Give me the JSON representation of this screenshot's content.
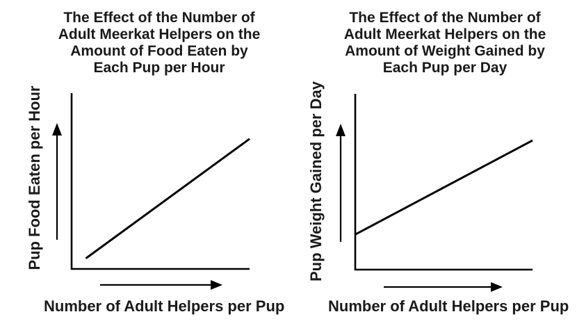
{
  "page": {
    "background": "#ffffff",
    "text_color": "#1a1a1a",
    "line_color": "#000000"
  },
  "charts": [
    {
      "id": "food-eaten",
      "title_lines": [
        "The Effect of the Number of",
        "Adult Meerkat Helpers on the",
        "Amount of Food Eaten by",
        "Each Pup per Hour"
      ],
      "ylabel": "Pup Food Eaten per Hour",
      "xlabel": "Number of Adult Helpers per Pup"
    },
    {
      "id": "weight-gained",
      "title_lines": [
        "The Effect of the Number of",
        "Adult Meerkat Helpers on the",
        "Amount of Weight Gained by",
        "Each Pup per Day"
      ],
      "ylabel": "Pup Weight Gained per Day",
      "xlabel": "Number of Adult Helpers per Pup"
    }
  ],
  "chart_data": [
    {
      "type": "line",
      "title": "The Effect of the Number of Adult Meerkat Helpers on the Amount of Food Eaten by Each Pup per Hour",
      "xlabel": "Number of Adult Helpers per Pup",
      "ylabel": "Pup Food Eaten per Hour",
      "x_axis": {
        "tick_labels": [],
        "arrow_indicates_increase": true
      },
      "y_axis": {
        "tick_labels": [],
        "arrow_indicates_increase": true
      },
      "grid": false,
      "legend": false,
      "trend": "positive linear; starts slightly above origin, rises steeply",
      "series": [
        {
          "name": "Pup food eaten per hour",
          "x_rel": [
            0.08,
            1.0
          ],
          "y_rel": [
            0.06,
            0.74
          ]
        }
      ]
    },
    {
      "type": "line",
      "title": "The Effect of the Number of Adult Meerkat Helpers on the Amount of Weight Gained by Each Pup per Day",
      "xlabel": "Number of Adult Helpers per Pup",
      "ylabel": "Pup Weight Gained per Day",
      "x_axis": {
        "tick_labels": [],
        "arrow_indicates_increase": true
      },
      "y_axis": {
        "tick_labels": [],
        "arrow_indicates_increase": true
      },
      "grid": false,
      "legend": false,
      "trend": "positive linear; starts at a higher intercept on the y-axis, rises more gently",
      "series": [
        {
          "name": "Pup weight gained per day",
          "x_rel": [
            0.0,
            1.0
          ],
          "y_rel": [
            0.2,
            0.735
          ]
        }
      ]
    }
  ]
}
